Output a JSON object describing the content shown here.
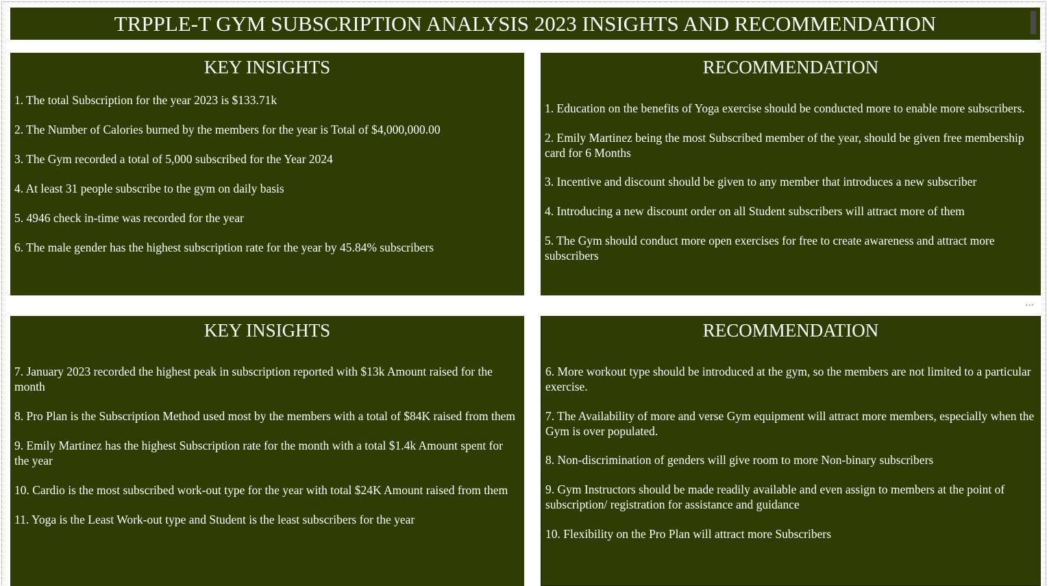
{
  "title": "TRPPLE-T GYM SUBSCRIPTION ANALYSIS 2023 INSIGHTS AND RECOMMENDATION",
  "more_options_icon": "ellipsis-icon",
  "colors": {
    "panel_bg": "#2f3d05",
    "text": "#ffffff",
    "page_bg": "#ffffff"
  },
  "panels": [
    {
      "heading": "KEY INSIGHTS",
      "items": [
        "1.  The total Subscription for the year 2023 is $133.71k",
        "2.  The Number of Calories burned by the members for the year is Total of  $4,000,000.00",
        "3.  The Gym recorded a total of 5,000 subscribed for the Year 2024",
        "4.  At least 31 people subscribe to the gym on daily basis",
        "5.  4946 check in-time was recorded for the year",
        "6.  The male gender has the highest subscription rate for the year  by 45.84% subscribers"
      ]
    },
    {
      "heading": "RECOMMENDATION",
      "items": [
        "1.  Education on the benefits of Yoga exercise should be conducted more to enable more subscribers.",
        "2.  Emily Martinez being the most Subscribed member of the year, should be given free membership card for 6 Months",
        "3.  Incentive and discount should be given to any member that introduces a new subscriber",
        "4.  Introducing a new discount order  on all Student subscribers will attract more of them",
        "5.  The Gym should conduct more open exercises for free to create awareness and attract more subscribers"
      ]
    },
    {
      "heading": "KEY INSIGHTS",
      "items": [
        "7.  January 2023 recorded the highest peak in subscription  reported with $13k Amount raised for the month",
        "8.  Pro Plan is the Subscription Method used most by the members with a total of $84K raised from them",
        "9.  Emily Martinez has the highest Subscription rate for the month with a total $1.4k Amount spent for the year",
        "10.  Cardio is the most subscribed work-out type for the year with total $24K Amount raised from them",
        "11. Yoga is the Least Work-out type and Student is the least subscribers for the year"
      ]
    },
    {
      "heading": "RECOMMENDATION",
      "items": [
        "6.  More workout type should be introduced at the gym, so the members are not limited to a particular exercise.",
        "7.  The Availability of more and verse Gym equipment will attract  more members, especially when the Gym is over populated.",
        "8.  Non-discrimination of genders will give room to more Non-binary subscribers",
        "9.  Gym Instructors should be made readily available and even assign to members at the point of subscription/ registration for assistance and guidance",
        "10. Flexibility on the Pro Plan will attract more Subscribers"
      ]
    }
  ]
}
